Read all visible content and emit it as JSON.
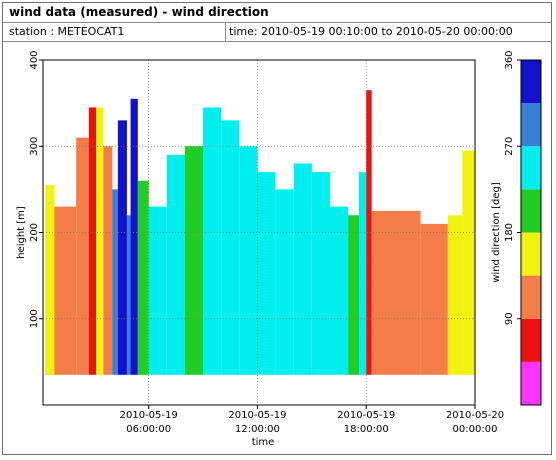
{
  "header": {
    "title": "wind data (measured) - wind direction",
    "station": "station : METEOCAT1",
    "time_range": "time: 2010-05-19 00:10:00 to 2010-05-20 00:00:00"
  },
  "chart_data": {
    "type": "heatmap",
    "xlabel": "time",
    "ylabel": "height [m]",
    "colorbar_label": "wind direction [deg]",
    "x_ticks": [
      {
        "hour": 6,
        "line1": "2010-05-19",
        "line2": "06:00:00"
      },
      {
        "hour": 12,
        "line1": "2010-05-19",
        "line2": "12:00:00"
      },
      {
        "hour": 18,
        "line1": "2010-05-19",
        "line2": "18:00:00"
      },
      {
        "hour": 24,
        "line1": "2010-05-20",
        "line2": "00:00:00"
      }
    ],
    "xlim_hours": [
      0.17,
      24
    ],
    "ylim": [
      0,
      400
    ],
    "y_ticks": [
      "100",
      "200",
      "300",
      "400"
    ],
    "y_tick_values": [
      100,
      200,
      300,
      400
    ],
    "min_height": 35,
    "grid": true,
    "colorbar": {
      "range": [
        0,
        360
      ],
      "ticks": [
        "90",
        "180",
        "270",
        "360"
      ],
      "tick_values": [
        90,
        180,
        270,
        360
      ],
      "bins": [
        {
          "from": 0,
          "to": 45,
          "color": "#ff33ff"
        },
        {
          "from": 45,
          "to": 90,
          "color": "#ee1111"
        },
        {
          "from": 90,
          "to": 135,
          "color": "#f47d4a"
        },
        {
          "from": 135,
          "to": 180,
          "color": "#f2f20f"
        },
        {
          "from": 180,
          "to": 225,
          "color": "#22cc22"
        },
        {
          "from": 225,
          "to": 270,
          "color": "#00eeee"
        },
        {
          "from": 270,
          "to": 315,
          "color": "#3a7fd6"
        },
        {
          "from": 315,
          "to": 360,
          "color": "#1212cc"
        }
      ]
    },
    "segments": [
      {
        "from_hour": 0.3,
        "to_hour": 2.0,
        "direction": 120,
        "top": 230
      },
      {
        "from_hour": 0.3,
        "to_hour": 0.8,
        "direction": 160,
        "top": 255
      },
      {
        "from_hour": 2.0,
        "to_hour": 2.7,
        "direction": 120,
        "top": 310
      },
      {
        "from_hour": 2.7,
        "to_hour": 3.1,
        "direction": 70,
        "top": 345
      },
      {
        "from_hour": 3.1,
        "to_hour": 3.5,
        "direction": 160,
        "top": 345
      },
      {
        "from_hour": 3.5,
        "to_hour": 4.0,
        "direction": 120,
        "top": 300
      },
      {
        "from_hour": 4.0,
        "to_hour": 4.3,
        "direction": 290,
        "top": 250
      },
      {
        "from_hour": 4.3,
        "to_hour": 4.8,
        "direction": 340,
        "top": 330
      },
      {
        "from_hour": 4.8,
        "to_hour": 5.0,
        "direction": 290,
        "top": 220
      },
      {
        "from_hour": 5.0,
        "to_hour": 5.4,
        "direction": 340,
        "top": 355
      },
      {
        "from_hour": 5.4,
        "to_hour": 6.0,
        "direction": 200,
        "top": 260
      },
      {
        "from_hour": 6.0,
        "to_hour": 7.0,
        "direction": 250,
        "top": 230
      },
      {
        "from_hour": 7.0,
        "to_hour": 8.0,
        "direction": 250,
        "top": 290
      },
      {
        "from_hour": 8.0,
        "to_hour": 9.0,
        "direction": 200,
        "top": 300
      },
      {
        "from_hour": 9.0,
        "to_hour": 10.0,
        "direction": 250,
        "top": 345
      },
      {
        "from_hour": 10.0,
        "to_hour": 11.0,
        "direction": 250,
        "top": 330
      },
      {
        "from_hour": 11.0,
        "to_hour": 12.0,
        "direction": 250,
        "top": 300
      },
      {
        "from_hour": 12.0,
        "to_hour": 13.0,
        "direction": 250,
        "top": 270
      },
      {
        "from_hour": 13.0,
        "to_hour": 14.0,
        "direction": 250,
        "top": 250
      },
      {
        "from_hour": 14.0,
        "to_hour": 15.0,
        "direction": 250,
        "top": 280
      },
      {
        "from_hour": 15.0,
        "to_hour": 16.0,
        "direction": 250,
        "top": 270
      },
      {
        "from_hour": 16.0,
        "to_hour": 17.0,
        "direction": 250,
        "top": 230
      },
      {
        "from_hour": 17.0,
        "to_hour": 17.6,
        "direction": 200,
        "top": 220
      },
      {
        "from_hour": 17.6,
        "to_hour": 18.0,
        "direction": 250,
        "top": 270
      },
      {
        "from_hour": 18.0,
        "to_hour": 18.3,
        "direction": 80,
        "top": 365
      },
      {
        "from_hour": 18.3,
        "to_hour": 21.0,
        "direction": 120,
        "top": 225
      },
      {
        "from_hour": 21.0,
        "to_hour": 22.5,
        "direction": 120,
        "top": 210
      },
      {
        "from_hour": 22.5,
        "to_hour": 23.3,
        "direction": 150,
        "top": 220
      },
      {
        "from_hour": 23.3,
        "to_hour": 24.0,
        "direction": 160,
        "top": 295
      }
    ]
  }
}
